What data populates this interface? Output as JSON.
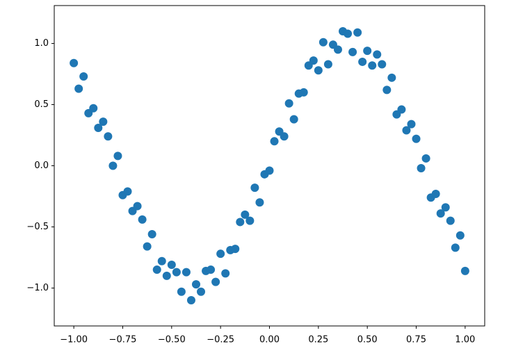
{
  "chart_data": {
    "type": "scatter",
    "color": "#1f77b4",
    "x": [
      -1,
      -0.975,
      -0.95,
      -0.925,
      -0.9,
      -0.875,
      -0.85,
      -0.825,
      -0.8,
      -0.775,
      -0.75,
      -0.725,
      -0.7,
      -0.675,
      -0.65,
      -0.625,
      -0.6,
      -0.575,
      -0.55,
      -0.525,
      -0.5,
      -0.475,
      -0.45,
      -0.425,
      -0.4,
      -0.375,
      -0.35,
      -0.325,
      -0.3,
      -0.275,
      -0.25,
      -0.225,
      -0.2,
      -0.175,
      -0.15,
      -0.125,
      -0.1,
      -0.075,
      -0.05,
      -0.025,
      0,
      0.025,
      0.05,
      0.075,
      0.1,
      0.125,
      0.15,
      0.175,
      0.2,
      0.225,
      0.25,
      0.275,
      0.3,
      0.325,
      0.35,
      0.375,
      0.4,
      0.425,
      0.45,
      0.475,
      0.5,
      0.525,
      0.55,
      0.575,
      0.6,
      0.625,
      0.65,
      0.675,
      0.7,
      0.725,
      0.75,
      0.775,
      0.8,
      0.825,
      0.85,
      0.875,
      0.9,
      0.925,
      0.95,
      0.975,
      1
    ],
    "values": [
      0.84,
      0.63,
      0.73,
      0.43,
      0.47,
      0.31,
      0.36,
      0.24,
      0,
      0.08,
      -0.24,
      -0.21,
      -0.37,
      -0.33,
      -0.44,
      -0.66,
      -0.56,
      -0.85,
      -0.78,
      -0.9,
      -0.81,
      -0.87,
      -1.03,
      -0.87,
      -1.1,
      -0.97,
      -1.03,
      -0.86,
      -0.85,
      -0.95,
      -0.72,
      -0.88,
      -0.69,
      -0.68,
      -0.46,
      -0.4,
      -0.45,
      -0.18,
      -0.3,
      -0.07,
      -0.04,
      0.2,
      0.28,
      0.24,
      0.51,
      0.38,
      0.59,
      0.6,
      0.82,
      0.86,
      0.78,
      1.01,
      0.83,
      0.99,
      0.95,
      1.1,
      1.08,
      0.93,
      1.09,
      0.85,
      0.94,
      0.82,
      0.91,
      0.83,
      0.62,
      0.72,
      0.42,
      0.46,
      0.29,
      0.34,
      0.22,
      -0.02,
      0.06,
      -0.26,
      -0.23,
      -0.39,
      -0.34,
      -0.45,
      -0.67,
      -0.57,
      -0.86
    ],
    "xlim": [
      -1.1,
      1.1
    ],
    "xticks": [
      {
        "value": -1,
        "label": "−1.00"
      },
      {
        "value": -0.75,
        "label": "−0.75"
      },
      {
        "value": -0.5,
        "label": "−0.50"
      },
      {
        "value": -0.25,
        "label": "−0.25"
      },
      {
        "value": 0,
        "label": "0.00"
      },
      {
        "value": 0.25,
        "label": "0.25"
      },
      {
        "value": 0.5,
        "label": "0.50"
      },
      {
        "value": 0.75,
        "label": "0.75"
      },
      {
        "value": 1,
        "label": "1.00"
      }
    ],
    "ylim": [
      -1.31,
      1.31
    ],
    "yticks": [
      {
        "value": -1,
        "label": "−1.0"
      },
      {
        "value": -0.5,
        "label": "−0.5"
      },
      {
        "value": 0,
        "label": "0.0"
      },
      {
        "value": 0.5,
        "label": "0.5"
      },
      {
        "value": 1,
        "label": "1.0"
      }
    ]
  }
}
